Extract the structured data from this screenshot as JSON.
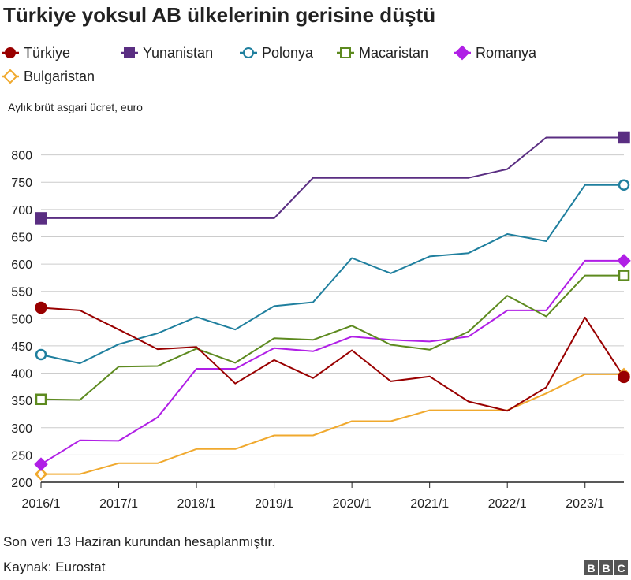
{
  "chart_data": {
    "type": "line",
    "title": "Türkiye yoksul AB ülkelerinin gerisine düştü",
    "ylabel": "Aylık brüt asgari ücret, euro",
    "xlabel": "",
    "ylim": [
      200,
      850
    ],
    "yticks": [
      200,
      250,
      300,
      350,
      400,
      450,
      500,
      550,
      600,
      650,
      700,
      750,
      800
    ],
    "x": [
      "2016/1",
      "2016/7",
      "2017/1",
      "2017/7",
      "2018/1",
      "2018/7",
      "2019/1",
      "2019/7",
      "2020/1",
      "2020/7",
      "2021/1",
      "2021/7",
      "2022/1",
      "2022/7",
      "2023/1",
      "2023/7"
    ],
    "xtick_labels": [
      "2016/1",
      "2017/1",
      "2018/1",
      "2019/1",
      "2020/1",
      "2021/1",
      "2022/1",
      "2023/1"
    ],
    "grid": "horizontal",
    "legend_position": "top",
    "series": [
      {
        "name": "Türkiye",
        "color": "#990000",
        "marker": "filled-circle",
        "values": [
          520,
          515,
          480,
          444,
          448,
          381,
          424,
          391,
          442,
          385,
          394,
          348,
          331,
          374,
          502,
          393
        ]
      },
      {
        "name": "Yunanistan",
        "color": "#5a2e82",
        "marker": "filled-square",
        "values": [
          684,
          684,
          684,
          684,
          684,
          684,
          684,
          758,
          758,
          758,
          758,
          758,
          774,
          832,
          832,
          832
        ]
      },
      {
        "name": "Polonya",
        "color": "#1f7f9e",
        "marker": "open-circle",
        "values": [
          434,
          418,
          453,
          473,
          503,
          480,
          523,
          530,
          611,
          583,
          614,
          620,
          655,
          642,
          745,
          745
        ]
      },
      {
        "name": "Macaristan",
        "color": "#5d8a1f",
        "marker": "open-square",
        "values": [
          352,
          351,
          412,
          413,
          445,
          419,
          464,
          461,
          487,
          452,
          443,
          476,
          542,
          504,
          579,
          579
        ]
      },
      {
        "name": "Romanya",
        "color": "#b01fe6",
        "marker": "filled-diamond",
        "values": [
          233,
          277,
          276,
          319,
          408,
          408,
          446,
          440,
          467,
          461,
          458,
          467,
          515,
          515,
          606,
          606
        ]
      },
      {
        "name": "Bulgaristan",
        "color": "#f0a92e",
        "marker": "open-diamond",
        "values": [
          215,
          215,
          235,
          235,
          261,
          261,
          286,
          286,
          312,
          312,
          332,
          332,
          332,
          363,
          398,
          398
        ]
      }
    ]
  },
  "footer": {
    "note": "Son veri 13 Haziran kurundan hesaplanmıştır.",
    "source": "Kaynak: Eurostat",
    "logo": [
      "B",
      "B",
      "C"
    ]
  }
}
